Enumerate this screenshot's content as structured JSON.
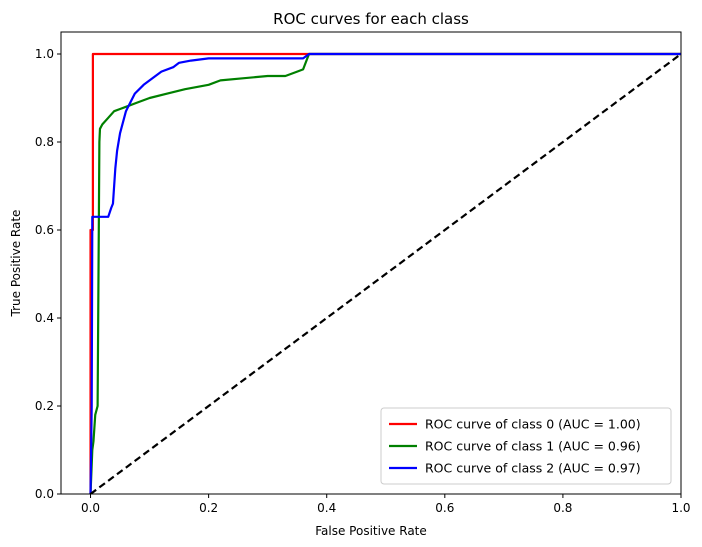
{
  "chart_data": {
    "type": "line",
    "title": "ROC curves for each class",
    "xlabel": "False Positive Rate",
    "ylabel": "True Positive Rate",
    "xlim": [
      -0.05,
      1.0
    ],
    "ylim": [
      0.0,
      1.05
    ],
    "xticks": [
      "0.0",
      "0.2",
      "0.4",
      "0.6",
      "0.8",
      "1.0"
    ],
    "yticks": [
      "0.0",
      "0.2",
      "0.4",
      "0.6",
      "0.8",
      "1.0"
    ],
    "grid": false,
    "legend_position": "lower-right",
    "series": [
      {
        "name": "ROC curve of class 0 (AUC = 1.00)",
        "color": "#ff0000",
        "dash": "solid",
        "x": [
          0.0,
          0.0,
          0.004,
          0.004,
          1.0
        ],
        "y": [
          0.0,
          0.6,
          0.6,
          1.0,
          1.0
        ]
      },
      {
        "name": "ROC curve of class 1 (AUC = 0.96)",
        "color": "#008000",
        "dash": "solid",
        "x": [
          0.0,
          0.003,
          0.005,
          0.008,
          0.01,
          0.012,
          0.015,
          0.016,
          0.02,
          0.03,
          0.04,
          0.05,
          0.06,
          0.08,
          0.1,
          0.13,
          0.16,
          0.2,
          0.22,
          0.26,
          0.3,
          0.33,
          0.35,
          0.36,
          0.37,
          0.7,
          1.0
        ],
        "y": [
          0.0,
          0.1,
          0.12,
          0.18,
          0.19,
          0.2,
          0.8,
          0.83,
          0.84,
          0.855,
          0.87,
          0.875,
          0.88,
          0.89,
          0.9,
          0.91,
          0.92,
          0.93,
          0.94,
          0.945,
          0.95,
          0.95,
          0.96,
          0.965,
          1.0,
          1.0,
          1.0
        ]
      },
      {
        "name": "ROC curve of class 2 (AUC = 0.97)",
        "color": "#0000ff",
        "dash": "solid",
        "x": [
          0.0,
          0.002,
          0.003,
          0.03,
          0.035,
          0.038,
          0.042,
          0.045,
          0.05,
          0.06,
          0.075,
          0.09,
          0.1,
          0.12,
          0.14,
          0.15,
          0.17,
          0.2,
          0.22,
          0.36,
          0.37,
          0.69,
          0.72,
          1.0
        ],
        "y": [
          0.0,
          0.2,
          0.63,
          0.63,
          0.65,
          0.66,
          0.74,
          0.78,
          0.82,
          0.87,
          0.91,
          0.93,
          0.94,
          0.96,
          0.97,
          0.98,
          0.985,
          0.99,
          0.99,
          0.99,
          1.0,
          1.0,
          1.0,
          1.0
        ]
      },
      {
        "name": "",
        "color": "#000000",
        "dash": "dashed",
        "x": [
          0.0,
          1.0
        ],
        "y": [
          0.0,
          1.0
        ]
      }
    ]
  }
}
